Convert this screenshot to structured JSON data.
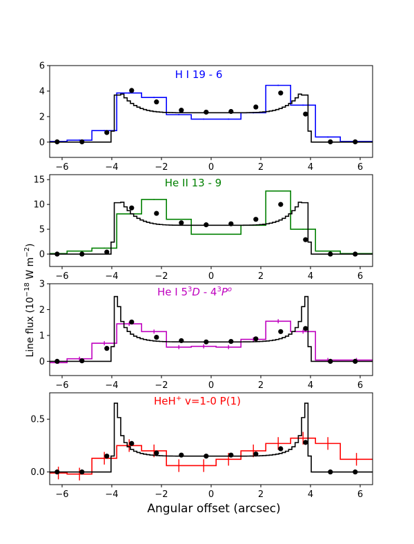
{
  "figure": {
    "xlabel": "Angular offset (arcsec)",
    "ylabel_main": "Line flux (10",
    "ylabel_exp1": "−18",
    "ylabel_mid": " W m",
    "ylabel_exp2": "−2",
    "ylabel_end": ")"
  },
  "chart_data": [
    {
      "type": "line",
      "title": "H I 19 - 6",
      "title_color": "#0000ff",
      "xlim": [
        -6.5,
        6.5
      ],
      "ylim": [
        -1.2,
        6.0
      ],
      "yticks": [
        0,
        2,
        4,
        6
      ],
      "ytick_labels": [
        "0",
        "2",
        "4",
        "6"
      ],
      "xticks": [
        -6,
        -4,
        -2,
        0,
        2,
        4,
        6
      ],
      "xtick_labels": [
        "−6",
        "−4",
        "−2",
        "0",
        "2",
        "4",
        "6"
      ],
      "model_peak": 4.1,
      "model_center": 2.3,
      "edge_spike": 0,
      "observed": {
        "name": "observed",
        "color": "#0000ff",
        "edges": [
          -6.5,
          -5.8,
          -4.8,
          -3.8,
          -2.8,
          -1.8,
          -0.8,
          0.2,
          1.2,
          2.2,
          3.2,
          4.2,
          5.2,
          6.5
        ],
        "values": [
          0.05,
          0.15,
          0.9,
          3.85,
          3.5,
          2.15,
          1.8,
          1.8,
          2.3,
          4.45,
          2.9,
          0.4,
          0.05
        ],
        "errors": [
          0.05,
          0.05,
          0.05,
          0.05,
          0.05,
          0.05,
          0.05,
          0.05,
          0.05,
          0.05,
          0.05,
          0.05,
          0.05
        ]
      },
      "points": {
        "x": [
          -6.2,
          -5.2,
          -4.2,
          -3.2,
          -2.2,
          -1.2,
          -0.2,
          0.8,
          1.8,
          2.8,
          3.8,
          4.8,
          5.8
        ],
        "y": [
          0.02,
          0.02,
          0.75,
          4.05,
          3.15,
          2.5,
          2.35,
          2.4,
          2.75,
          3.85,
          2.2,
          0.02,
          0.02
        ]
      }
    },
    {
      "type": "line",
      "title": "He II 13 - 9",
      "title_color": "#008000",
      "xlim": [
        -6.5,
        6.5
      ],
      "ylim": [
        -2.5,
        16.0
      ],
      "yticks": [
        0,
        5,
        10,
        15
      ],
      "ytick_labels": [
        "0",
        "5",
        "10",
        "15"
      ],
      "xticks": [
        -6,
        -4,
        -2,
        0,
        2,
        4,
        6
      ],
      "xtick_labels": [
        "−6",
        "−4",
        "−2",
        "0",
        "2",
        "4",
        "6"
      ],
      "model_peak": 11.5,
      "model_center": 5.8,
      "edge_spike": 0,
      "observed": {
        "name": "observed",
        "color": "#008000",
        "edges": [
          -6.5,
          -5.8,
          -4.8,
          -3.8,
          -2.8,
          -1.8,
          -0.8,
          0.2,
          1.2,
          2.2,
          3.2,
          4.2,
          5.2,
          6.5
        ],
        "values": [
          0.1,
          0.6,
          1.2,
          8.1,
          11.0,
          7.0,
          4.0,
          4.0,
          5.8,
          12.7,
          5.0,
          0.6,
          0.1
        ],
        "errors": [
          0.1,
          0.1,
          0.1,
          0.1,
          0.1,
          0.1,
          0.1,
          0.1,
          0.1,
          0.1,
          0.1,
          0.1,
          0.1
        ]
      },
      "points": {
        "x": [
          -6.2,
          -5.2,
          -4.2,
          -3.2,
          -2.2,
          -1.2,
          -0.2,
          0.8,
          1.8,
          2.8,
          3.8,
          4.8,
          5.8
        ],
        "y": [
          0.0,
          0.0,
          0.4,
          9.3,
          8.2,
          6.3,
          5.9,
          6.1,
          7.0,
          10.0,
          2.9,
          0.0,
          0.0
        ]
      }
    },
    {
      "type": "line",
      "title_main": "He I 5",
      "title_sup1": "3",
      "title_it1": "D",
      "title_mid": " - 4",
      "title_sup2": "3",
      "title_it2": "P",
      "title_sup3": "o",
      "title_color": "#bf00bf",
      "xlim": [
        -6.5,
        6.5
      ],
      "ylim": [
        -0.55,
        3.0
      ],
      "yticks": [
        0,
        1,
        2,
        3
      ],
      "ytick_labels": [
        "0",
        "1",
        "2",
        "3"
      ],
      "xticks": [
        -6,
        -4,
        -2,
        0,
        2,
        4,
        6
      ],
      "xtick_labels": [
        "−6",
        "−4",
        "−2",
        "0",
        "2",
        "4",
        "6"
      ],
      "model_peak": 1.5,
      "model_center": 0.75,
      "edge_spike": 2.7,
      "observed": {
        "name": "observed",
        "color": "#bf00bf",
        "edges": [
          -6.5,
          -5.8,
          -4.8,
          -3.8,
          -2.8,
          -1.8,
          -0.8,
          0.2,
          1.2,
          2.2,
          3.2,
          4.2,
          5.2,
          6.5
        ],
        "values": [
          -0.05,
          0.1,
          0.7,
          1.45,
          1.15,
          0.55,
          0.58,
          0.55,
          0.85,
          1.55,
          1.15,
          0.05,
          0.05
        ],
        "errors": [
          0.05,
          0.08,
          0.08,
          0.08,
          0.08,
          0.08,
          0.08,
          0.08,
          0.08,
          0.08,
          0.08,
          0.08,
          0.08
        ]
      },
      "points": {
        "x": [
          -6.2,
          -5.2,
          -4.2,
          -3.2,
          -2.2,
          -1.2,
          -0.2,
          0.8,
          1.8,
          2.8,
          3.8,
          4.8,
          5.8
        ],
        "y": [
          0.0,
          0.02,
          0.5,
          1.52,
          0.93,
          0.8,
          0.75,
          0.77,
          0.87,
          1.15,
          1.27,
          0.0,
          0.0
        ]
      }
    },
    {
      "type": "line",
      "title_main": "HeH",
      "title_sup": "+",
      "title_rest": " v=1-0 P(1)",
      "title_color": "#ff0000",
      "xlim": [
        -6.5,
        6.5
      ],
      "ylim": [
        -0.12,
        0.75
      ],
      "yticks": [
        0.0,
        0.5
      ],
      "ytick_labels": [
        "0.0",
        "0.5"
      ],
      "xticks": [
        -6,
        -4,
        -2,
        0,
        2,
        4,
        6
      ],
      "xtick_labels": [
        "−6",
        "−4",
        "−2",
        "0",
        "2",
        "4",
        "6"
      ],
      "model_peak": 0.3,
      "model_center": 0.15,
      "edge_spike": 0.72,
      "observed": {
        "name": "observed",
        "color": "#ff0000",
        "edges": [
          -6.5,
          -5.8,
          -4.8,
          -3.8,
          -2.8,
          -1.8,
          -0.8,
          0.2,
          1.2,
          2.2,
          3.2,
          4.2,
          5.2,
          6.5
        ],
        "values": [
          -0.01,
          -0.02,
          0.13,
          0.25,
          0.2,
          0.06,
          0.06,
          0.12,
          0.2,
          0.27,
          0.32,
          0.27,
          0.12
        ],
        "errors": [
          0.06,
          0.06,
          0.06,
          0.06,
          0.06,
          0.06,
          0.06,
          0.06,
          0.06,
          0.06,
          0.06,
          0.06,
          0.06
        ]
      },
      "points": {
        "x": [
          -6.2,
          -5.2,
          -4.2,
          -3.2,
          -2.2,
          -1.2,
          -0.2,
          0.8,
          1.8,
          2.8,
          3.8,
          4.8,
          5.8
        ],
        "y": [
          0.0,
          0.0,
          0.15,
          0.27,
          0.18,
          0.16,
          0.15,
          0.16,
          0.17,
          0.22,
          0.28,
          0.0,
          0.0
        ]
      }
    }
  ]
}
